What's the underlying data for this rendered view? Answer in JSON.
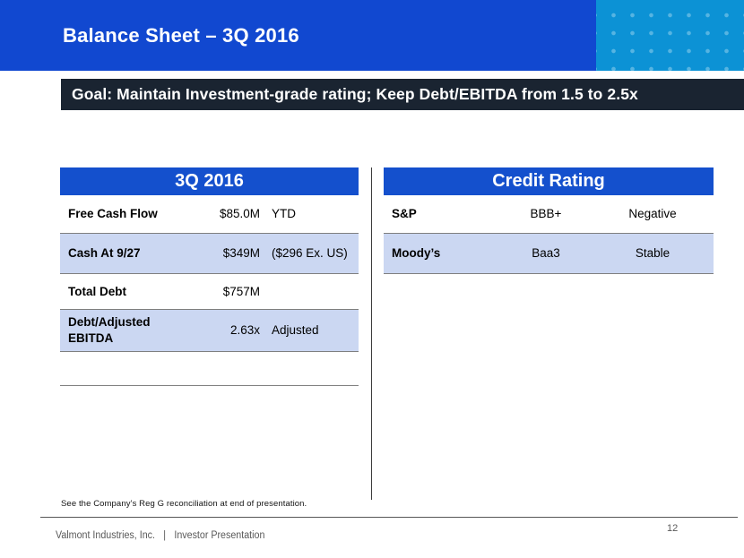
{
  "slide": {
    "title": "Balance Sheet – 3Q 2016",
    "goal_banner": "Goal: Maintain Investment-grade rating; Keep Debt/EBITDA from 1.5 to 2.5x",
    "footnote": "See the Company’s Reg G reconciliation at end of presentation.",
    "footer": {
      "company": "Valmont Industries, Inc.",
      "separator": "|",
      "label": "Investor Presentation",
      "page_number": "12"
    }
  },
  "left_table": {
    "header": "3Q 2016",
    "rows": [
      {
        "label": "Free Cash Flow",
        "value": "$85.0M",
        "note": "YTD"
      },
      {
        "label": "Cash At 9/27",
        "value": "$349M",
        "note": "($296 Ex. US)"
      },
      {
        "label": "Total Debt",
        "value": "$757M",
        "note": ""
      },
      {
        "label": "Debt/Adjusted EBITDA",
        "value": "2.63x",
        "note": "Adjusted"
      },
      {
        "label": "",
        "value": "",
        "note": ""
      }
    ]
  },
  "right_table": {
    "header": "Credit Rating",
    "rows": [
      {
        "agency": "S&P",
        "rating": "BBB+",
        "outlook": "Negative"
      },
      {
        "agency": "Moody’s",
        "rating": "Baa3",
        "outlook": "Stable"
      }
    ]
  },
  "colors": {
    "accent_blue": "#1450cd",
    "title_blue": "#1148d0",
    "teal_block": "#0c92d5",
    "banner_dark": "#1a2431",
    "shaded_row": "#cbd7f2"
  }
}
